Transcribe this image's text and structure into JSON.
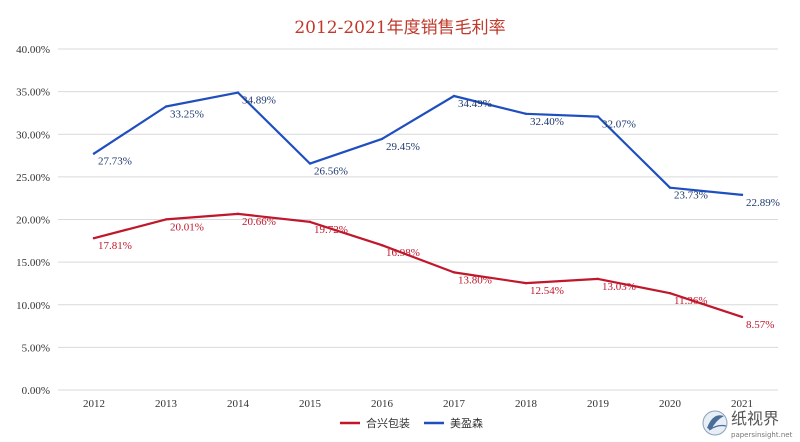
{
  "chart_data": {
    "type": "line",
    "title": "2012-2021年度销售毛利率",
    "categories": [
      "2012",
      "2013",
      "2014",
      "2015",
      "2016",
      "2017",
      "2018",
      "2019",
      "2020",
      "2021"
    ],
    "ylim": [
      0,
      40
    ],
    "ytick_labels": [
      "0.00%",
      "5.00%",
      "10.00%",
      "15.00%",
      "20.00%",
      "25.00%",
      "30.00%",
      "35.00%",
      "40.00%"
    ],
    "grid": true,
    "legend_position": "bottom",
    "series": [
      {
        "name": "合兴包装",
        "color": "#c0172b",
        "values": [
          17.81,
          20.01,
          20.66,
          19.72,
          16.98,
          13.8,
          12.54,
          13.03,
          11.36,
          8.57
        ],
        "labels": [
          "17.81%",
          "20.01%",
          "20.66%",
          "19.72%",
          "16.98%",
          "13.80%",
          "12.54%",
          "13.03%",
          "11.36%",
          "8.57%"
        ]
      },
      {
        "name": "美盈森",
        "color": "#1f4fbf",
        "values": [
          27.73,
          33.25,
          34.89,
          26.56,
          29.45,
          34.49,
          32.4,
          32.07,
          23.73,
          22.89
        ],
        "labels": [
          "27.73%",
          "33.25%",
          "34.89%",
          "26.56%",
          "29.45%",
          "34.49%",
          "32.40%",
          "32.07%",
          "23.73%",
          "22.89%"
        ]
      }
    ]
  },
  "watermark": {
    "icon": "paper-logo-icon",
    "text": "纸视界",
    "url": "papersinsight.net"
  }
}
